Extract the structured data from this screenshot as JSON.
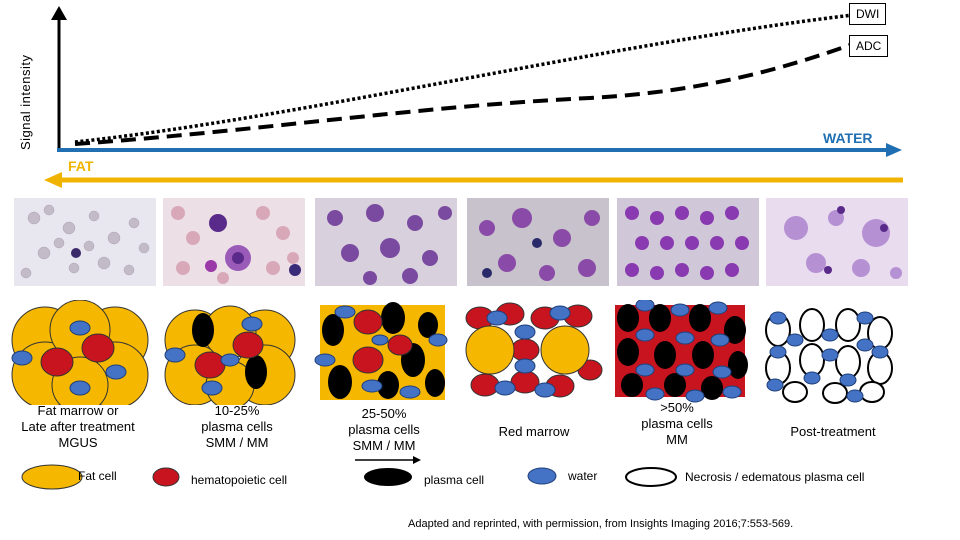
{
  "axis": {
    "ylabel": "Signal intensity"
  },
  "curves": {
    "dwi_label": "DWI",
    "adc_label": "ADC"
  },
  "arrows": {
    "water_label": "WATER",
    "fat_label": "FAT"
  },
  "colors": {
    "fat_cell": "#f5b700",
    "hematopoietic_cell": "#c8141e",
    "plasma_cell": "#000000",
    "water": "#4472c4",
    "water_arrow": "#1f6fb2",
    "fat_arrow": "#f0b400"
  },
  "stages": [
    {
      "label_lines": [
        "Fat marrow or",
        "Late after treatment",
        "MGUS"
      ]
    },
    {
      "label_lines": [
        "10-25%",
        "plasma cells",
        "SMM / MM"
      ]
    },
    {
      "label_lines": [
        "25-50%",
        "plasma cells",
        "SMM / MM"
      ]
    },
    {
      "label_lines": [
        "Red marrow"
      ]
    },
    {
      "label_lines": [
        ">50%",
        "plasma cells",
        "MM"
      ]
    },
    {
      "label_lines": [
        "Post-treatment"
      ]
    }
  ],
  "legend": {
    "fat_cell": "Fat cell",
    "hematopoietic_cell": "hematopoietic cell",
    "plasma_cell": "plasma cell",
    "water": "water",
    "necrosis": "Necrosis / edematous plasma cell"
  },
  "credit": "Adapted and reprinted, with permission, from Insights Imaging 2016;7:553-569."
}
